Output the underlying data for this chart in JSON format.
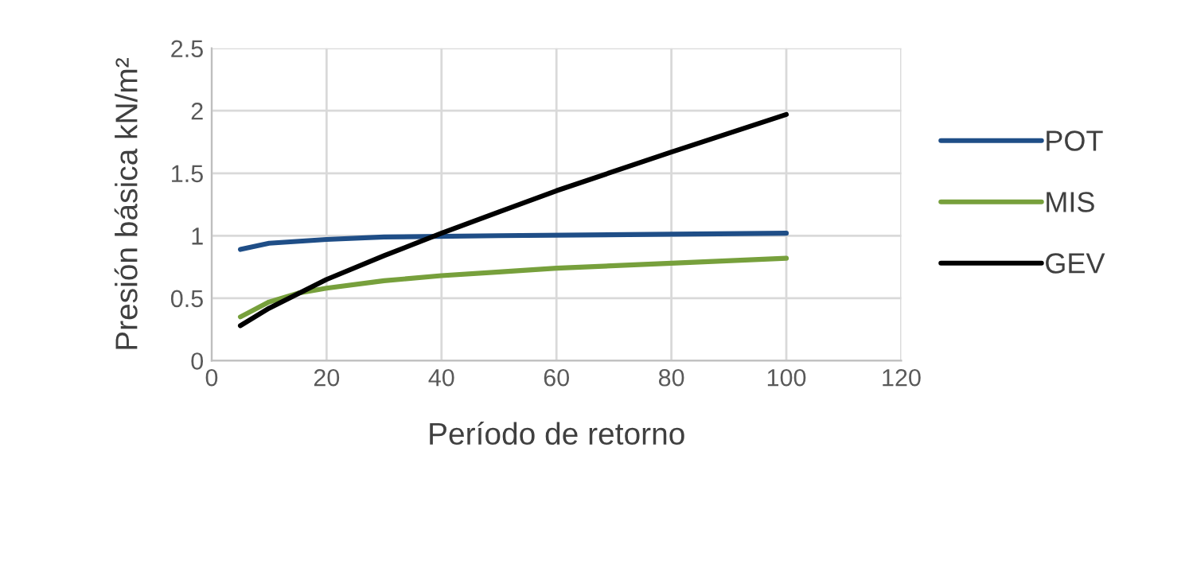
{
  "chart_data": {
    "type": "line",
    "xlabel": "Período de retorno",
    "ylabel": "Presión básica kN/m²",
    "xlim": [
      0,
      120
    ],
    "xticks": [
      0,
      20,
      40,
      60,
      80,
      100,
      120
    ],
    "ylim": [
      0,
      2.5
    ],
    "yticks": [
      0,
      0.5,
      1,
      1.5,
      2,
      2.5
    ],
    "grid": true,
    "legend": "right",
    "marker": "none",
    "line_style": "solid",
    "series": [
      {
        "name": "POT",
        "color": "#1f4e87",
        "x": [
          5,
          10,
          20,
          30,
          50,
          100
        ],
        "values": [
          0.89,
          0.94,
          0.97,
          0.99,
          1.0,
          1.02
        ]
      },
      {
        "name": "MIS",
        "color": "#77a03c",
        "x": [
          5,
          10,
          15,
          20,
          30,
          40,
          50,
          60,
          80,
          100
        ],
        "values": [
          0.35,
          0.47,
          0.54,
          0.58,
          0.64,
          0.68,
          0.71,
          0.74,
          0.78,
          0.82
        ]
      },
      {
        "name": "GEV",
        "color": "#000000",
        "x": [
          5,
          10,
          20,
          30,
          40,
          50,
          60,
          80,
          100
        ],
        "values": [
          0.28,
          0.42,
          0.65,
          0.84,
          1.02,
          1.19,
          1.36,
          1.67,
          1.97
        ]
      }
    ]
  }
}
